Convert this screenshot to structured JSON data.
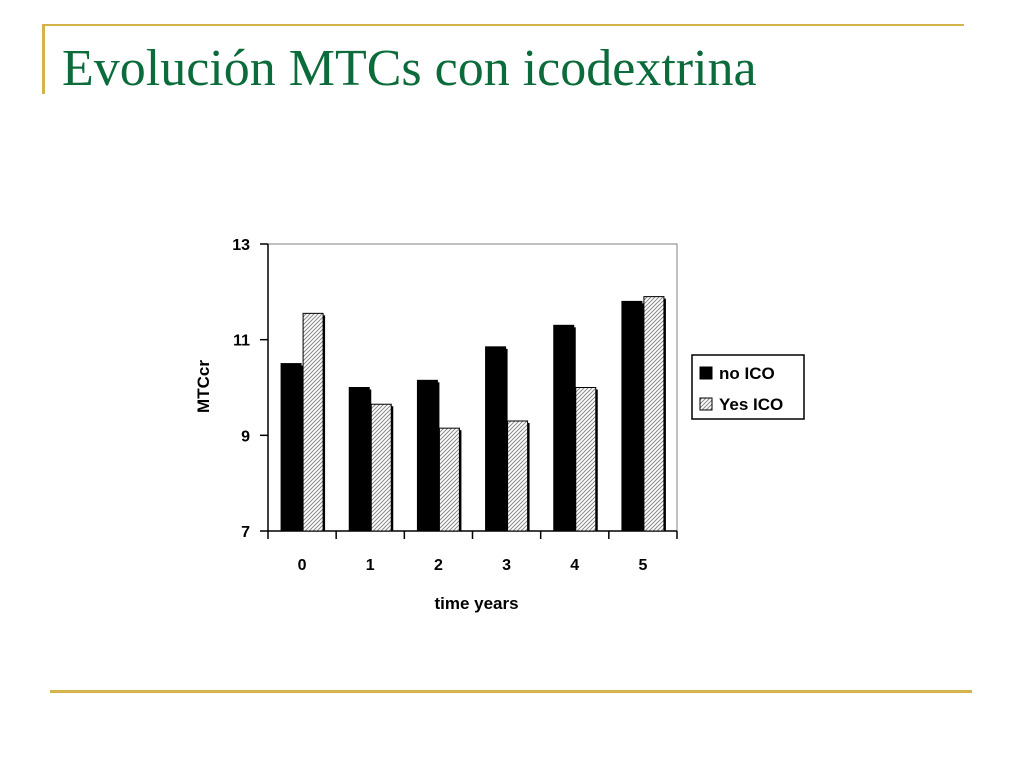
{
  "slide": {
    "title": "Evolución MTCs con icodextrina",
    "accent_color": "#d4b44a",
    "title_color": "#0b6b3a"
  },
  "chart_data": {
    "type": "bar",
    "categories": [
      "0",
      "1",
      "2",
      "3",
      "4",
      "5"
    ],
    "series": [
      {
        "name": "no ICO",
        "values": [
          10.5,
          10.0,
          10.15,
          10.85,
          11.3,
          11.8
        ],
        "color": "#000000",
        "pattern": "solid"
      },
      {
        "name": "Yes ICO",
        "values": [
          11.55,
          9.65,
          9.15,
          9.3,
          10.0,
          11.9
        ],
        "color": "#cccccc",
        "pattern": "hatched"
      }
    ],
    "xlabel": "time years",
    "ylabel": "MTCcr",
    "ylim": [
      7,
      13
    ],
    "yticks": [
      7,
      9,
      11,
      13
    ],
    "grid": false,
    "legend_position": "right"
  }
}
